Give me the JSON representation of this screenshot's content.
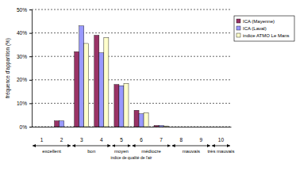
{
  "chart_data": {
    "type": "bar",
    "categories": [
      "1",
      "2",
      "3",
      "4",
      "5",
      "6",
      "7",
      "8",
      "9",
      "10"
    ],
    "series": [
      {
        "name": "ICA (Mayenne)",
        "color": "#993366",
        "values": [
          0,
          2.5,
          32,
          39,
          18,
          7,
          0.5,
          0,
          0,
          0
        ]
      },
      {
        "name": "ICA (Laval)",
        "color": "#9999ff",
        "values": [
          0,
          2.5,
          43,
          31.5,
          17.5,
          5.5,
          0.5,
          0,
          0,
          0
        ]
      },
      {
        "name": "indice ATMO Le Mans",
        "color": "#ffffcc",
        "values": [
          0,
          0,
          35.5,
          38,
          18.5,
          6,
          0.3,
          0,
          0,
          0
        ]
      }
    ],
    "ylim": [
      0,
      50
    ],
    "yticks": [
      {
        "value": 0,
        "label": "0%"
      },
      {
        "value": 10,
        "label": "10%"
      },
      {
        "value": 20,
        "label": "20%"
      },
      {
        "value": 30,
        "label": "30%"
      },
      {
        "value": 40,
        "label": "40%"
      },
      {
        "value": 50,
        "label": "50%"
      }
    ],
    "y_label": "fréquence d'apparition (%)",
    "x_label": "indice de qualité de l'air",
    "category_groups": [
      {
        "label": "excellent",
        "categories": [
          "1",
          "2"
        ]
      },
      {
        "label": "bon",
        "categories": [
          "3",
          "4"
        ]
      },
      {
        "label": "moyen",
        "categories": [
          "5"
        ]
      },
      {
        "label": "médiocre",
        "categories": [
          "6",
          "7"
        ]
      },
      {
        "label": "mauvais",
        "categories": [
          "8",
          "9"
        ]
      },
      {
        "label": "très mauvais",
        "categories": [
          "10"
        ]
      }
    ],
    "grid": true,
    "legend": "right"
  }
}
